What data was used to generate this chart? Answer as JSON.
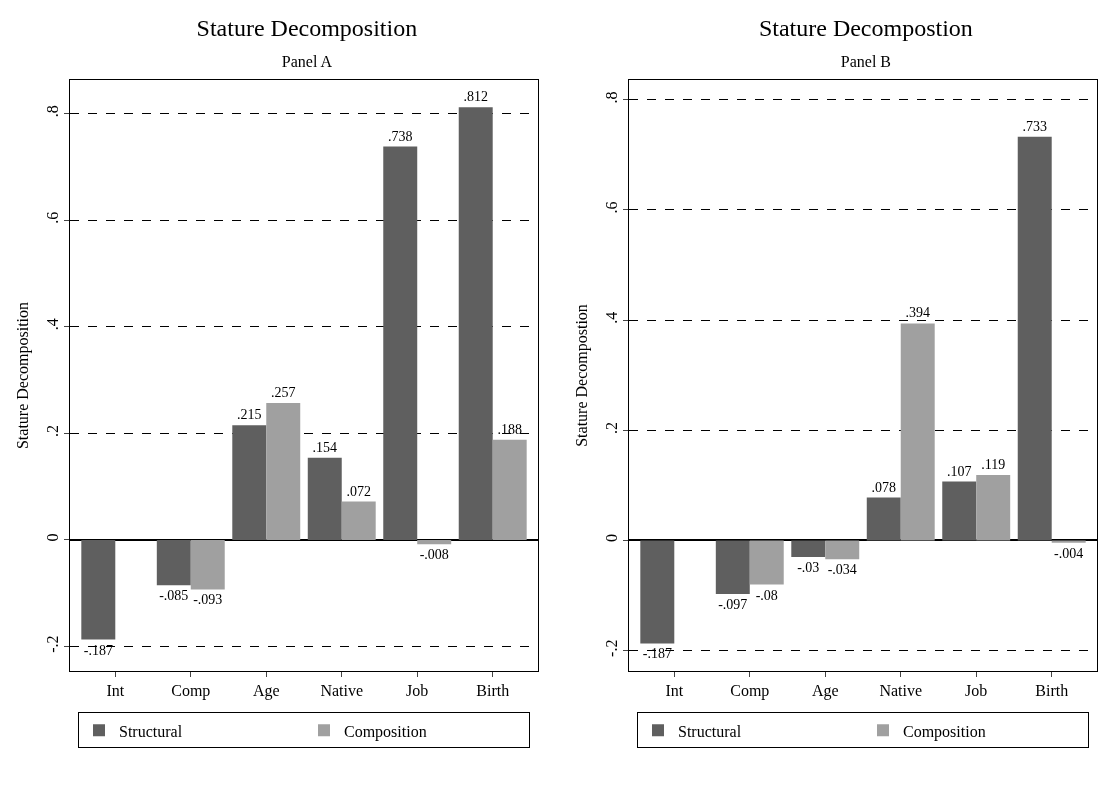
{
  "chart_data": [
    {
      "type": "bar",
      "title": "Stature Decomposition",
      "subtitle": "Panel A",
      "ylabel": "Stature Decomposition",
      "categories": [
        "Int",
        "Comp",
        "Age",
        "Native",
        "Job",
        "Birth"
      ],
      "series": [
        {
          "name": "Structural",
          "color": "#5f5f5f",
          "values": [
            -0.187,
            -0.085,
            0.215,
            0.154,
            0.738,
            0.812
          ],
          "value_labels": [
            "-.187",
            "-.085",
            ".215",
            ".154",
            ".738",
            ".812"
          ]
        },
        {
          "name": "Composition",
          "color": "#a0a0a0",
          "values": [
            null,
            -0.093,
            0.257,
            0.072,
            -0.008,
            0.188
          ],
          "value_labels": [
            null,
            "-.093",
            ".257",
            ".072",
            "-.008",
            ".188"
          ]
        }
      ],
      "ylim": [
        -0.246,
        0.863
      ],
      "yticks": [
        {
          "value": -0.2,
          "label": "-.2"
        },
        {
          "value": 0,
          "label": "0"
        },
        {
          "value": 0.2,
          "label": ".2"
        },
        {
          "value": 0.4,
          "label": ".4"
        },
        {
          "value": 0.6,
          "label": ".6"
        },
        {
          "value": 0.8,
          "label": ".8"
        }
      ],
      "grid": "y",
      "legend": "bottom"
    },
    {
      "type": "bar",
      "title": "Stature Decompostion",
      "subtitle": "Panel B",
      "ylabel": "Stature Decompostion",
      "categories": [
        "Int",
        "Comp",
        "Age",
        "Native",
        "Job",
        "Birth"
      ],
      "series": [
        {
          "name": "Structural",
          "color": "#5f5f5f",
          "values": [
            -0.187,
            -0.097,
            -0.03,
            0.078,
            0.107,
            0.733
          ],
          "value_labels": [
            "-.187",
            "-.097",
            "-.03",
            ".078",
            ".107",
            ".733"
          ]
        },
        {
          "name": "Composition",
          "color": "#a0a0a0",
          "values": [
            null,
            -0.08,
            -0.034,
            0.394,
            0.119,
            -0.004
          ],
          "value_labels": [
            null,
            "-.08",
            "-.034",
            ".394",
            ".119",
            "-.004"
          ]
        }
      ],
      "ylim": [
        -0.237,
        0.836
      ],
      "yticks": [
        {
          "value": -0.2,
          "label": "-.2"
        },
        {
          "value": 0,
          "label": "0"
        },
        {
          "value": 0.2,
          "label": ".2"
        },
        {
          "value": 0.4,
          "label": ".4"
        },
        {
          "value": 0.6,
          "label": ".6"
        },
        {
          "value": 0.8,
          "label": ".8"
        }
      ],
      "grid": "y",
      "legend": "bottom"
    }
  ]
}
